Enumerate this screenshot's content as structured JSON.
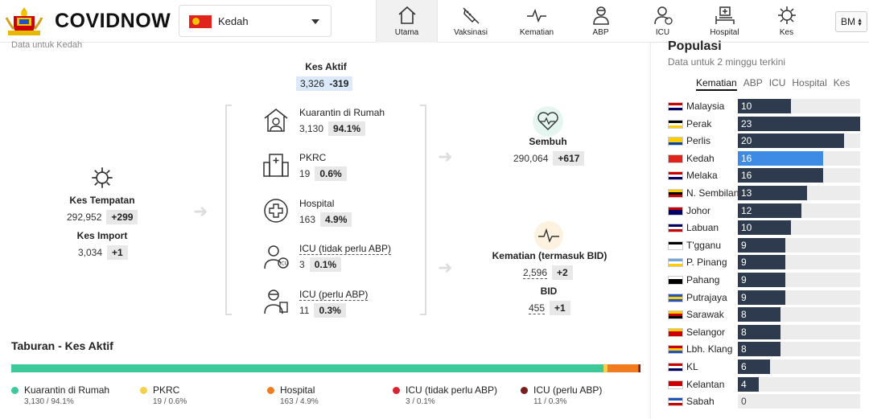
{
  "header": {
    "brand": "COVIDNOW",
    "state": "Kedah",
    "nav": [
      {
        "label": "Utama",
        "icon": "home-icon",
        "active": true
      },
      {
        "label": "Vaksinasi",
        "icon": "syringe-icon"
      },
      {
        "label": "Kematian",
        "icon": "pulse-icon"
      },
      {
        "label": "ABP",
        "icon": "ppe-icon"
      },
      {
        "label": "ICU",
        "icon": "icu-icon"
      },
      {
        "label": "Hospital",
        "icon": "hospital-bed-icon"
      },
      {
        "label": "Kes",
        "icon": "virus-icon"
      }
    ],
    "lang": "BM"
  },
  "main": {
    "note": "Data untuk Kedah",
    "active": {
      "label": "Kes Aktif",
      "value": "3,326",
      "change": "-319"
    },
    "local": {
      "label": "Kes Tempatan",
      "value": "292,952",
      "change": "+299"
    },
    "import": {
      "label": "Kes Import",
      "value": "3,034",
      "change": "+1"
    },
    "categories": [
      {
        "name": "Kuarantin di Rumah",
        "value": "3,130",
        "pct": "94.1%"
      },
      {
        "name": "PKRC",
        "value": "19",
        "pct": "0.6%"
      },
      {
        "name": "Hospital",
        "value": "163",
        "pct": "4.9%"
      },
      {
        "name": "ICU (tidak perlu ABP)",
        "value": "3",
        "pct": "0.1%"
      },
      {
        "name": "ICU (perlu ABP)",
        "value": "11",
        "pct": "0.3%"
      }
    ],
    "recovered": {
      "label": "Sembuh",
      "value": "290,064",
      "change": "+617"
    },
    "deaths": {
      "label": "Kematian (termasuk BID)",
      "value": "2,596",
      "change": "+2"
    },
    "bid": {
      "label": "BID",
      "value": "455",
      "change": "+1"
    }
  },
  "distribution": {
    "title": "Taburan - Kes Aktif",
    "items": [
      {
        "name": "Kuarantin di Rumah",
        "detail": "3,130 / 94.1%",
        "share": 94.1,
        "color": "#3ec99a"
      },
      {
        "name": "PKRC",
        "detail": "19 / 0.6%",
        "share": 0.6,
        "color": "#f4cf4b"
      },
      {
        "name": "Hospital",
        "detail": "163 / 4.9%",
        "share": 4.9,
        "color": "#f07c1f"
      },
      {
        "name": "ICU (tidak perlu ABP)",
        "detail": "3 / 0.1%",
        "share": 0.1,
        "color": "#d7262f"
      },
      {
        "name": "ICU (perlu ABP)",
        "detail": "11 / 0.3%",
        "share": 0.3,
        "color": "#7b1e1e"
      }
    ]
  },
  "ranking": {
    "title": "Populasi",
    "subtitle": "Data untuk 2 minggu terkini",
    "tabs": [
      "Kematian",
      "ABP",
      "ICU",
      "Hospital",
      "Kes"
    ],
    "active_tab": "Kematian",
    "max": 23,
    "rows": [
      {
        "name": "Malaysia",
        "value": 10,
        "flag": [
          "#cc0001",
          "#ffffff",
          "#010066"
        ]
      },
      {
        "name": "Perak",
        "value": 23,
        "flag": [
          "#000000",
          "#ffffff",
          "#ffcc00"
        ]
      },
      {
        "name": "Perlis",
        "value": 20,
        "flag": [
          "#ffcc00",
          "#ffcc00",
          "#0044aa"
        ]
      },
      {
        "name": "Kedah",
        "value": 16,
        "flag": [
          "#e0241b",
          "#e0241b",
          "#e0241b"
        ],
        "selected": true
      },
      {
        "name": "Melaka",
        "value": 16,
        "flag": [
          "#cc0001",
          "#ffffff",
          "#010066"
        ]
      },
      {
        "name": "N. Sembilan",
        "value": 13,
        "flag": [
          "#ffcc00",
          "#000000",
          "#cc0001"
        ]
      },
      {
        "name": "Johor",
        "value": 12,
        "flag": [
          "#cc0001",
          "#010066",
          "#010066"
        ]
      },
      {
        "name": "Labuan",
        "value": 10,
        "flag": [
          "#010066",
          "#ffffff",
          "#cc0001"
        ]
      },
      {
        "name": "T'gganu",
        "value": 9,
        "flag": [
          "#000000",
          "#ffffff",
          "#ffffff"
        ]
      },
      {
        "name": "P. Pinang",
        "value": 9,
        "flag": [
          "#6fa8dc",
          "#ffffff",
          "#ffcc00"
        ]
      },
      {
        "name": "Pahang",
        "value": 9,
        "flag": [
          "#ffffff",
          "#000000",
          "#000000"
        ]
      },
      {
        "name": "Putrajaya",
        "value": 9,
        "flag": [
          "#2255bb",
          "#ffcc00",
          "#2255bb"
        ]
      },
      {
        "name": "Sarawak",
        "value": 8,
        "flag": [
          "#ffcc00",
          "#cc0001",
          "#000000"
        ]
      },
      {
        "name": "Selangor",
        "value": 8,
        "flag": [
          "#ffcc00",
          "#cc0001",
          "#cc0001"
        ]
      },
      {
        "name": "Lbh. Klang",
        "value": 8,
        "flag": [
          "#cc0001",
          "#ffcc00",
          "#2255bb"
        ]
      },
      {
        "name": "KL",
        "value": 6,
        "flag": [
          "#cc0001",
          "#ffffff",
          "#010066"
        ]
      },
      {
        "name": "Kelantan",
        "value": 4,
        "flag": [
          "#cc0001",
          "#cc0001",
          "#ffffff"
        ]
      },
      {
        "name": "Sabah",
        "value": 0,
        "flag": [
          "#2255bb",
          "#ffffff",
          "#cc0001"
        ]
      }
    ]
  }
}
